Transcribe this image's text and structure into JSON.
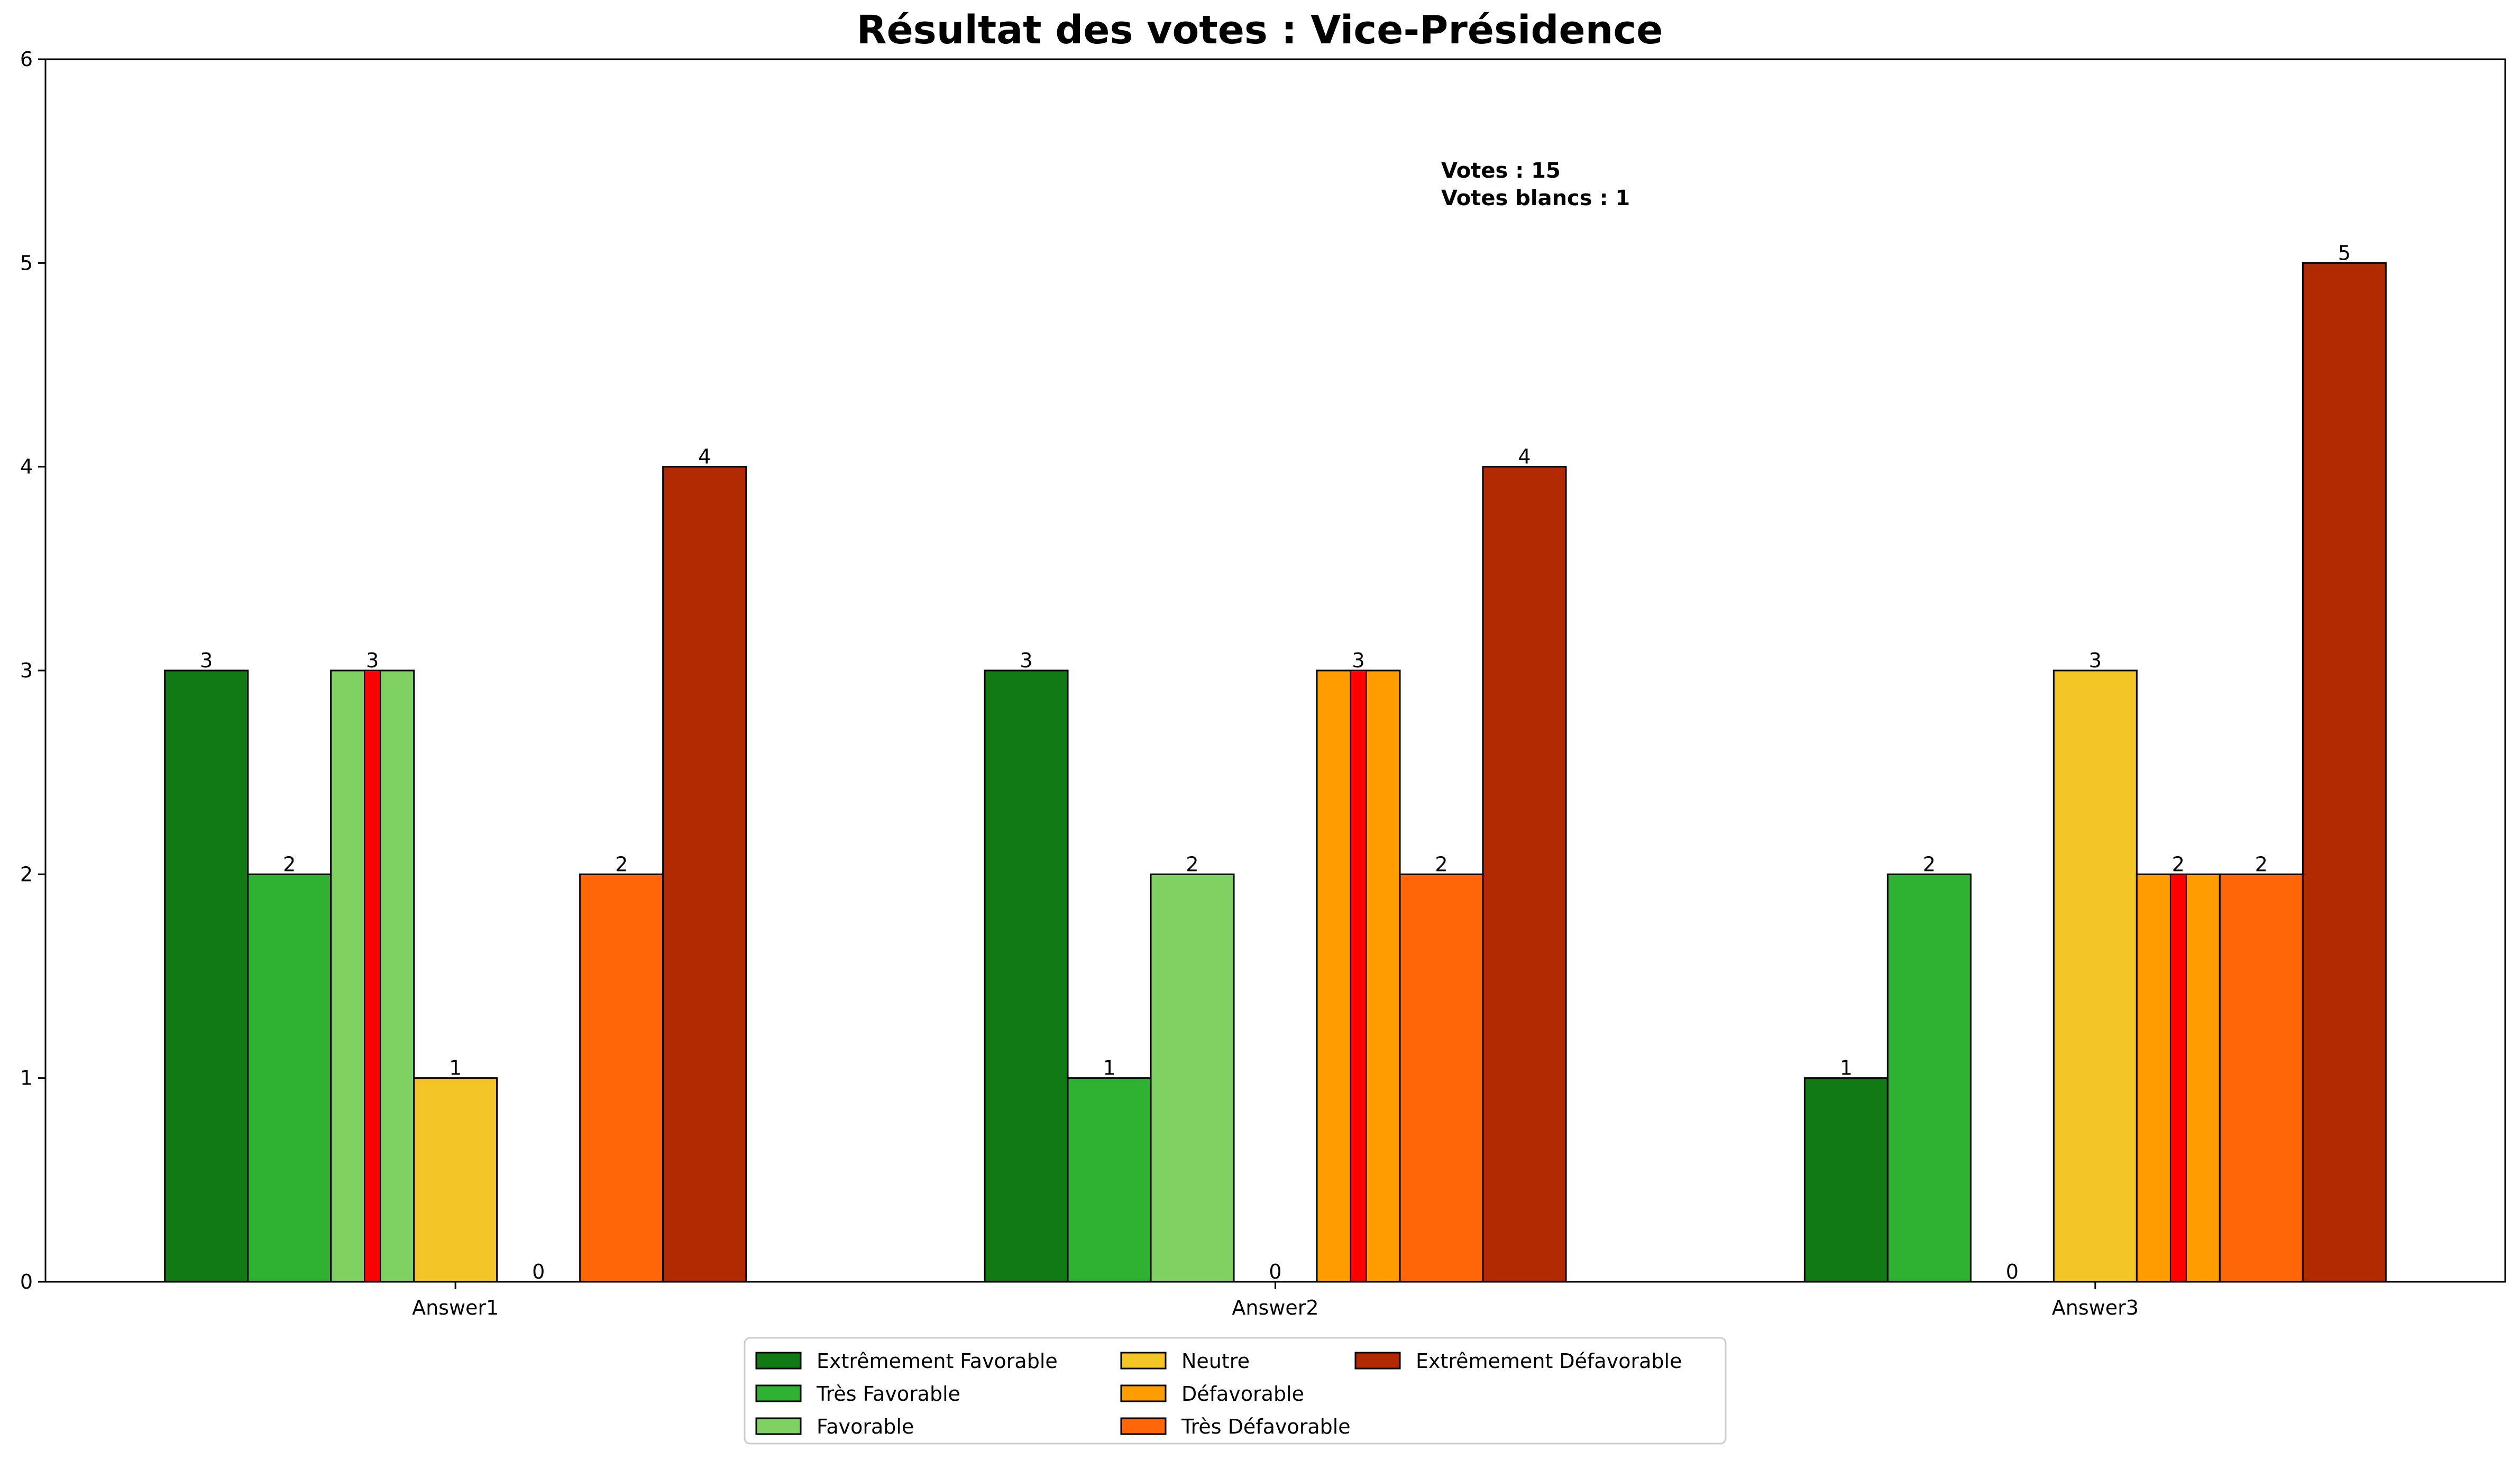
{
  "chart_data": {
    "type": "bar",
    "title": "Résultat des votes : Vice-Présidence",
    "categories": [
      "Answer1",
      "Answer2",
      "Answer3"
    ],
    "series": [
      {
        "name": "Extrêmement Favorable",
        "color": "#117a15",
        "values": [
          3,
          3,
          1
        ]
      },
      {
        "name": "Très Favorable",
        "color": "#2fb132",
        "values": [
          2,
          1,
          2
        ]
      },
      {
        "name": "Favorable",
        "color": "#7fd262",
        "values": [
          3,
          2,
          0
        ]
      },
      {
        "name": "Neutre",
        "color": "#f4c527",
        "values": [
          1,
          0,
          3
        ]
      },
      {
        "name": "Défavorable",
        "color": "#ff9c00",
        "values": [
          0,
          3,
          2
        ]
      },
      {
        "name": "Très Défavorable",
        "color": "#ff6608",
        "values": [
          2,
          2,
          2
        ]
      },
      {
        "name": "Extrêmement Défavorable",
        "color": "#b12a02",
        "values": [
          4,
          4,
          5
        ]
      }
    ],
    "median_marker": {
      "color": "#ff0000",
      "series_per_category": [
        "Favorable",
        "Défavorable",
        "Défavorable"
      ]
    },
    "ylim": [
      0,
      6
    ],
    "yticks": [
      "0",
      "1",
      "2",
      "3",
      "4",
      "5",
      "6"
    ],
    "annotations": [
      "Votes : 15",
      "Votes blancs : 1"
    ],
    "legend": {
      "position": "bottom-center",
      "columns": 3
    },
    "grid": false
  }
}
